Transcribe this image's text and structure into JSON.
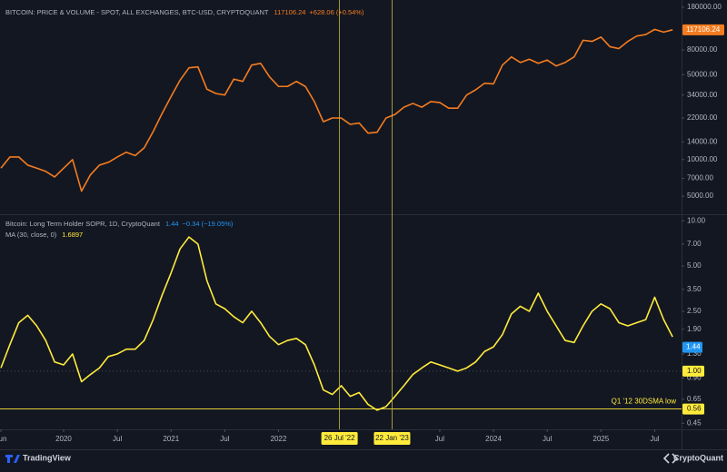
{
  "chart_data": [
    {
      "type": "line",
      "title": "BITCOIN: PRICE & VOLUME - SPOT, ALL EXCHANGES, BTC-USD, CRYPTOQUANT",
      "change": "+628.06 (+0.54%)",
      "log_scale": true,
      "grid": false,
      "x": [
        "2019-06",
        "2019-07",
        "2019-08",
        "2019-09",
        "2019-10",
        "2019-11",
        "2019-12",
        "2020-01",
        "2020-02",
        "2020-03",
        "2020-04",
        "2020-05",
        "2020-06",
        "2020-07",
        "2020-08",
        "2020-09",
        "2020-10",
        "2020-11",
        "2020-12",
        "2021-01",
        "2021-02",
        "2021-03",
        "2021-04",
        "2021-05",
        "2021-06",
        "2021-07",
        "2021-08",
        "2021-09",
        "2021-10",
        "2021-11",
        "2021-12",
        "2022-01",
        "2022-02",
        "2022-03",
        "2022-04",
        "2022-05",
        "2022-06",
        "2022-07",
        "2022-08",
        "2022-09",
        "2022-10",
        "2022-11",
        "2022-12",
        "2023-01",
        "2023-02",
        "2023-03",
        "2023-04",
        "2023-05",
        "2023-06",
        "2023-07",
        "2023-08",
        "2023-09",
        "2023-10",
        "2023-11",
        "2023-12",
        "2024-01",
        "2024-02",
        "2024-03",
        "2024-04",
        "2024-05",
        "2024-06",
        "2024-07",
        "2024-08",
        "2024-09",
        "2024-10",
        "2024-11",
        "2024-12",
        "2025-01",
        "2025-02",
        "2025-03",
        "2025-04",
        "2025-05",
        "2025-06",
        "2025-07",
        "2025-08",
        "2025-09"
      ],
      "series": [
        {
          "color": "#f57c1f",
          "values": [
            8500,
            10500,
            10500,
            9000,
            8500,
            8000,
            7200,
            8500,
            10000,
            5500,
            7500,
            9000,
            9500,
            10500,
            11500,
            10800,
            12500,
            17000,
            24000,
            33000,
            45000,
            57000,
            58000,
            38000,
            35000,
            34000,
            46000,
            44000,
            60000,
            62000,
            48000,
            40000,
            40000,
            44000,
            40000,
            30000,
            20500,
            22000,
            22000,
            19500,
            20000,
            16500,
            16800,
            22000,
            23500,
            27000,
            29000,
            27000,
            30000,
            29500,
            26500,
            26500,
            34000,
            37500,
            42500,
            42000,
            60000,
            70000,
            63000,
            67000,
            62000,
            66000,
            59000,
            63000,
            70000,
            96000,
            94000,
            102000,
            85000,
            82000,
            94000,
            104000,
            107000,
            118000,
            112000,
            117106.24
          ]
        }
      ],
      "xlim": [
        "2019-06",
        "2025-10"
      ],
      "ylim": [
        3550,
        206000
      ],
      "yticks": [
        {
          "value": 180000,
          "label": "180000.00"
        },
        {
          "value": 80000,
          "label": "80000.00"
        },
        {
          "value": 50000,
          "label": "50000.00"
        },
        {
          "value": 34000,
          "label": "34000.00"
        },
        {
          "value": 22000,
          "label": "22000.00"
        },
        {
          "value": 14000,
          "label": "14000.00"
        },
        {
          "value": 10000,
          "label": "10000.00"
        },
        {
          "value": 7000,
          "label": "7000.00"
        },
        {
          "value": 5000,
          "label": "5000.00"
        }
      ]
    },
    {
      "type": "line",
      "title": "Bitcoin: Long Term Holder SOPR, 1D, CryptoQuant",
      "last_value": 1.44,
      "last_value_color": "#2196f3",
      "change": "−0.34 (−19.05%)",
      "log_scale": true,
      "grid": false,
      "x": [
        "2019-06",
        "2019-07",
        "2019-08",
        "2019-09",
        "2019-10",
        "2019-11",
        "2019-12",
        "2020-01",
        "2020-02",
        "2020-03",
        "2020-04",
        "2020-05",
        "2020-06",
        "2020-07",
        "2020-08",
        "2020-09",
        "2020-10",
        "2020-11",
        "2020-12",
        "2021-01",
        "2021-02",
        "2021-03",
        "2021-04",
        "2021-05",
        "2021-06",
        "2021-07",
        "2021-08",
        "2021-09",
        "2021-10",
        "2021-11",
        "2021-12",
        "2022-01",
        "2022-02",
        "2022-03",
        "2022-04",
        "2022-05",
        "2022-06",
        "2022-07",
        "2022-08",
        "2022-09",
        "2022-10",
        "2022-11",
        "2022-12",
        "2023-01",
        "2023-02",
        "2023-03",
        "2023-04",
        "2023-05",
        "2023-06",
        "2023-07",
        "2023-08",
        "2023-09",
        "2023-10",
        "2023-11",
        "2023-12",
        "2024-01",
        "2024-02",
        "2024-03",
        "2024-04",
        "2024-05",
        "2024-06",
        "2024-07",
        "2024-08",
        "2024-09",
        "2024-10",
        "2024-11",
        "2024-12",
        "2025-01",
        "2025-02",
        "2025-03",
        "2025-04",
        "2025-05",
        "2025-06",
        "2025-07",
        "2025-08",
        "2025-09"
      ],
      "series": [
        {
          "name": "MA (30, close, 0)",
          "color": "#ffeb3b",
          "values": [
            1.05,
            1.5,
            2.1,
            2.35,
            2.0,
            1.6,
            1.15,
            1.1,
            1.3,
            0.85,
            0.95,
            1.05,
            1.25,
            1.3,
            1.4,
            1.4,
            1.6,
            2.2,
            3.2,
            4.5,
            6.5,
            7.8,
            7.0,
            4.0,
            2.8,
            2.6,
            2.3,
            2.1,
            2.5,
            2.1,
            1.7,
            1.5,
            1.6,
            1.65,
            1.5,
            1.1,
            0.75,
            0.7,
            0.8,
            0.68,
            0.72,
            0.6,
            0.55,
            0.58,
            0.68,
            0.8,
            0.95,
            1.05,
            1.15,
            1.1,
            1.05,
            1.0,
            1.05,
            1.15,
            1.35,
            1.45,
            1.75,
            2.4,
            2.7,
            2.5,
            3.3,
            2.5,
            2.0,
            1.6,
            1.55,
            2.0,
            2.5,
            2.8,
            2.6,
            2.1,
            2.0,
            2.1,
            2.2,
            3.1,
            2.2,
            1.6897
          ]
        }
      ],
      "hlines": [
        {
          "value": 1.0,
          "label": "1.00",
          "color": "#ffeb3b",
          "style": "dotted"
        },
        {
          "value": 0.56,
          "label": "0.56",
          "color": "#ffeb3b",
          "style": "solid",
          "text": "Q1 '12 30DSMA low"
        }
      ],
      "markers": [
        {
          "value": "2022-07-26",
          "label": "26 Jul '22"
        },
        {
          "value": "2023-01-22",
          "label": "22 Jan '23"
        }
      ],
      "xlim": [
        "2019-06",
        "2025-10"
      ],
      "ylim": [
        0.41,
        10.9
      ],
      "yticks": [
        {
          "value": 10,
          "label": "10.00"
        },
        {
          "value": 7,
          "label": "7.00"
        },
        {
          "value": 5,
          "label": "5.00"
        },
        {
          "value": 3.5,
          "label": "3.50"
        },
        {
          "value": 2.5,
          "label": "2.50"
        },
        {
          "value": 1.9,
          "label": "1.90"
        },
        {
          "value": 1.3,
          "label": "1.30"
        },
        {
          "value": 0.9,
          "label": "0.90"
        },
        {
          "value": 0.65,
          "label": "0.65"
        },
        {
          "value": 0.45,
          "label": "0.45"
        }
      ],
      "xticks": [
        {
          "value": "2019-06",
          "label": "Jun"
        },
        {
          "value": "2020-01",
          "label": "2020"
        },
        {
          "value": "2020-07",
          "label": "Jul"
        },
        {
          "value": "2021-01",
          "label": "2021"
        },
        {
          "value": "2021-07",
          "label": "Jul"
        },
        {
          "value": "2022-01",
          "label": "2022"
        },
        {
          "value": "2023-07",
          "label": "Jul"
        },
        {
          "value": "2024-01",
          "label": "2024"
        },
        {
          "value": "2024-07",
          "label": "Jul"
        },
        {
          "value": "2025-01",
          "label": "2025"
        },
        {
          "value": "2025-07",
          "label": "Jul"
        }
      ]
    }
  ],
  "footer": {
    "left": "TradingView",
    "right": "CryptoQuant"
  }
}
